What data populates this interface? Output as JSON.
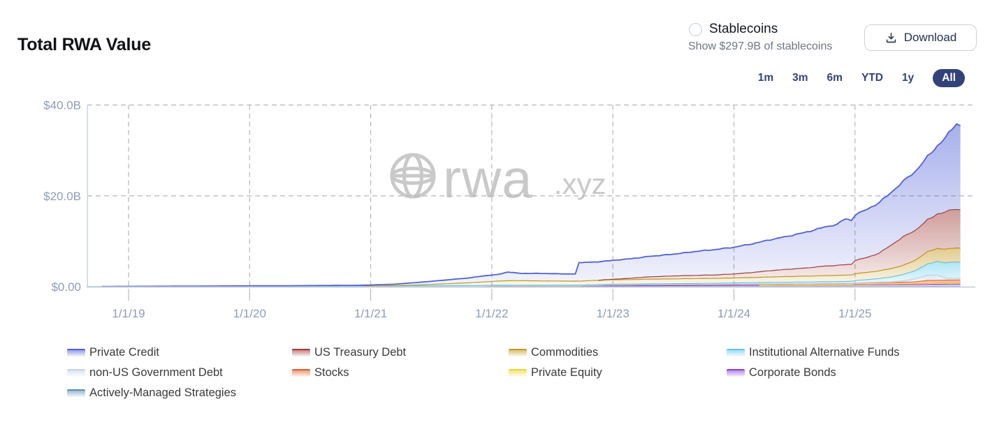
{
  "header": {
    "title": "Total RWA Value",
    "stablecoins_label": "Stablecoins",
    "stablecoins_sub": "Show $297.9B of stablecoins",
    "stablecoins_checked": false,
    "download_label": "Download"
  },
  "range_selector": {
    "options": [
      "1m",
      "3m",
      "6m",
      "YTD",
      "1y",
      "All"
    ],
    "active": "All",
    "accent_color": "#33427a"
  },
  "watermark": {
    "text": "rwa",
    "suffix": ".xyz",
    "color": "#c9c9c9"
  },
  "chart_data": {
    "type": "area",
    "stacked": true,
    "title": "Total RWA Value",
    "unit": "$B",
    "grid": true,
    "ylim": [
      0,
      40
    ],
    "ytick_values": [
      40,
      20,
      0
    ],
    "ytick_labels": [
      "$40.0B",
      "$20.0B",
      "$0.00"
    ],
    "xtick_years": [
      2019,
      2020,
      2021,
      2022,
      2023,
      2024,
      2025
    ],
    "xtick_labels": [
      "1/1/19",
      "1/1/20",
      "1/1/21",
      "1/1/22",
      "1/1/23",
      "1/1/24",
      "1/1/25"
    ],
    "xlim": [
      2018.66,
      2025.87
    ],
    "x": [
      2018.66,
      2018.9,
      2019.1,
      2019.4,
      2019.7,
      2020.0,
      2020.3,
      2020.6,
      2020.9,
      2021.0,
      2021.2,
      2021.4,
      2021.6,
      2021.8,
      2021.95,
      2022.05,
      2022.13,
      2022.18,
      2022.25,
      2022.4,
      2022.55,
      2022.69,
      2022.72,
      2022.85,
      2023.0,
      2023.15,
      2023.3,
      2023.5,
      2023.7,
      2023.85,
      2024.0,
      2024.15,
      2024.3,
      2024.45,
      2024.6,
      2024.75,
      2024.85,
      2024.92,
      2024.97,
      2025.0,
      2025.1,
      2025.2,
      2025.3,
      2025.4,
      2025.5,
      2025.6,
      2025.68,
      2025.75,
      2025.8,
      2025.84,
      2025.87
    ],
    "series": [
      {
        "name": "Actively-Managed Strategies",
        "color": "#5e8db6",
        "values": [
          0,
          0,
          0,
          0,
          0,
          0.01,
          0.01,
          0.02,
          0.02,
          0.03,
          0.04,
          0.04,
          0.04,
          0.04,
          0.04,
          0.04,
          0.04,
          0.04,
          0.04,
          0.04,
          0.04,
          0.04,
          0.04,
          0.04,
          0.05,
          0.05,
          0.05,
          0.05,
          0.05,
          0.05,
          0.05,
          0.05,
          0.05,
          0.05,
          0.05,
          0.05,
          0.05,
          0.05,
          0.05,
          0.05,
          0.05,
          0.05,
          0.05,
          0.05,
          0.05,
          0.05,
          0.05,
          0.05,
          0.05,
          0.05,
          0.05
        ]
      },
      {
        "name": "Corporate Bonds",
        "color": "#8b3fd8",
        "values": [
          0,
          0,
          0,
          0,
          0,
          0,
          0,
          0,
          0,
          0,
          0,
          0,
          0,
          0,
          0,
          0,
          0,
          0,
          0,
          0,
          0,
          0,
          0,
          0.05,
          0.12,
          0.15,
          0.18,
          0.2,
          0.22,
          0.22,
          0.25,
          0.26,
          0.27,
          0.28,
          0.28,
          0.3,
          0.3,
          0.3,
          0.3,
          0.35,
          0.38,
          0.4,
          0.42,
          0.42,
          0.45,
          0.45,
          0.48,
          0.5,
          0.52,
          0.55,
          0.55
        ]
      },
      {
        "name": "Private Equity",
        "color": "#eed62e",
        "values": [
          0,
          0,
          0,
          0,
          0,
          0,
          0,
          0,
          0,
          0,
          0,
          0,
          0,
          0,
          0,
          0,
          0,
          0,
          0,
          0,
          0,
          0,
          0,
          0,
          0,
          0,
          0,
          0,
          0,
          0,
          0,
          0,
          0.02,
          0.03,
          0.04,
          0.05,
          0.06,
          0.06,
          0.07,
          0.1,
          0.1,
          0.12,
          0.13,
          0.15,
          0.17,
          0.2,
          0.22,
          0.28,
          0.3,
          0.3,
          0.3
        ]
      },
      {
        "name": "Stocks",
        "color": "#e35d28",
        "values": [
          0,
          0,
          0,
          0,
          0,
          0,
          0,
          0,
          0,
          0,
          0.02,
          0.04,
          0.06,
          0.08,
          0.1,
          0.15,
          0.15,
          0.15,
          0.15,
          0.15,
          0.15,
          0.15,
          0.15,
          0.16,
          0.18,
          0.18,
          0.19,
          0.2,
          0.2,
          0.22,
          0.24,
          0.25,
          0.25,
          0.26,
          0.27,
          0.28,
          0.28,
          0.28,
          0.29,
          0.3,
          0.32,
          0.34,
          0.36,
          0.38,
          0.4,
          0.7,
          0.68,
          0.62,
          0.6,
          0.6,
          0.6
        ]
      },
      {
        "name": "non-US Government Debt",
        "color": "#c7d4e8",
        "values": [
          0,
          0,
          0,
          0,
          0,
          0,
          0,
          0,
          0,
          0,
          0,
          0.03,
          0.03,
          0.03,
          0.04,
          0.04,
          0.04,
          0.04,
          0.04,
          0.04,
          0.04,
          0.04,
          0.04,
          0.04,
          0.04,
          0.04,
          0.04,
          0.04,
          0.04,
          0.04,
          0.05,
          0.05,
          0.05,
          0.05,
          0.05,
          0.05,
          0.05,
          0.05,
          0.05,
          0.05,
          0.06,
          0.08,
          0.1,
          0.3,
          0.7,
          1.1,
          1.15,
          0.45,
          0.38,
          0.35,
          0.35
        ]
      },
      {
        "name": "Institutional Alternative Funds",
        "color": "#5dc8ec",
        "values": [
          0.05,
          0.06,
          0.07,
          0.07,
          0.08,
          0.08,
          0.08,
          0.09,
          0.09,
          0.1,
          0.1,
          0.1,
          0.1,
          0.1,
          0.1,
          0.1,
          0.1,
          0.1,
          0.1,
          0.1,
          0.12,
          0.12,
          0.12,
          0.13,
          0.15,
          0.15,
          0.16,
          0.18,
          0.2,
          0.22,
          0.25,
          0.27,
          0.3,
          0.32,
          0.34,
          0.36,
          0.38,
          0.4,
          0.42,
          0.5,
          0.65,
          0.8,
          1.1,
          1.4,
          1.8,
          2.5,
          3.0,
          3.3,
          3.6,
          3.6,
          3.55
        ]
      },
      {
        "name": "Commodities",
        "color": "#c49a1f",
        "values": [
          0,
          0,
          0,
          0,
          0,
          0,
          0,
          0,
          0,
          0.02,
          0.08,
          0.2,
          0.4,
          0.6,
          0.8,
          0.9,
          1.0,
          1.0,
          1.0,
          0.95,
          0.9,
          0.88,
          0.88,
          0.95,
          1.0,
          1.0,
          1.05,
          1.05,
          1.1,
          1.1,
          1.1,
          1.15,
          1.2,
          1.25,
          1.3,
          1.35,
          1.38,
          1.4,
          1.42,
          1.5,
          1.6,
          1.7,
          1.85,
          2.0,
          2.3,
          2.7,
          2.85,
          3.0,
          3.05,
          3.1,
          3.1
        ]
      },
      {
        "name": "US Treasury Debt",
        "color": "#a03b36",
        "values": [
          0,
          0,
          0,
          0,
          0,
          0,
          0,
          0,
          0,
          0,
          0,
          0,
          0,
          0,
          0,
          0,
          0,
          0,
          0,
          0,
          0,
          0,
          0,
          0,
          0.1,
          0.3,
          0.5,
          0.65,
          0.7,
          0.75,
          0.85,
          1.1,
          1.4,
          1.6,
          1.8,
          2.1,
          2.2,
          2.3,
          2.35,
          2.9,
          3.3,
          3.9,
          5.2,
          6.3,
          6.6,
          7.0,
          7.6,
          8.2,
          8.6,
          8.5,
          8.4
        ]
      },
      {
        "name": "Private Credit",
        "color": "#4f60d8",
        "values": [
          0,
          0.01,
          0.02,
          0.05,
          0.08,
          0.1,
          0.12,
          0.15,
          0.2,
          0.22,
          0.32,
          0.55,
          0.8,
          1.05,
          1.35,
          1.45,
          1.9,
          1.75,
          1.6,
          1.65,
          1.6,
          1.55,
          4.1,
          4.05,
          4.15,
          4.3,
          4.5,
          4.8,
          5.3,
          5.6,
          5.9,
          6.3,
          6.8,
          7.3,
          7.9,
          8.6,
          9.0,
          10.1,
          9.7,
          10.0,
          10.6,
          11.1,
          11.6,
          12.2,
          13.0,
          13.9,
          15.0,
          16.4,
          17.8,
          18.9,
          18.5
        ]
      }
    ]
  },
  "legend": {
    "items": [
      {
        "label": "Private Credit",
        "color": "#4f60d8"
      },
      {
        "label": "US Treasury Debt",
        "color": "#a03b36"
      },
      {
        "label": "Commodities",
        "color": "#c49a1f"
      },
      {
        "label": "Institutional Alternative Funds",
        "color": "#5dc8ec"
      },
      {
        "label": "non-US Government Debt",
        "color": "#c7d4e8"
      },
      {
        "label": "Stocks",
        "color": "#e35d28"
      },
      {
        "label": "Private Equity",
        "color": "#eed62e"
      },
      {
        "label": "Corporate Bonds",
        "color": "#8b3fd8"
      },
      {
        "label": "Actively-Managed Strategies",
        "color": "#5e8db6"
      }
    ]
  }
}
